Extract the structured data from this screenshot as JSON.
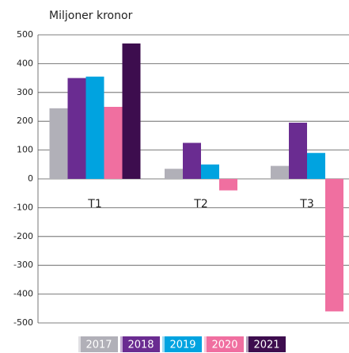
{
  "chart_data": {
    "type": "bar",
    "subtitle": "Miljoner kronor",
    "categories": [
      "T1",
      "T2",
      "T3"
    ],
    "series": [
      {
        "name": "2017",
        "color": "#b1b0b8",
        "values": [
          245,
          35,
          45
        ]
      },
      {
        "name": "2018",
        "color": "#6a2c91",
        "values": [
          350,
          125,
          195
        ]
      },
      {
        "name": "2019",
        "color": "#00a3e0",
        "values": [
          355,
          50,
          90
        ]
      },
      {
        "name": "2020",
        "color": "#f06fa0",
        "values": [
          250,
          -40,
          -460
        ]
      },
      {
        "name": "2021",
        "color": "#3d0d4e",
        "values": [
          470,
          null,
          null
        ]
      }
    ],
    "ylim": [
      -500,
      500
    ],
    "yticks": [
      500,
      400,
      300,
      200,
      100,
      0,
      -100,
      -200,
      -300,
      -400,
      -500
    ],
    "grid": true
  }
}
